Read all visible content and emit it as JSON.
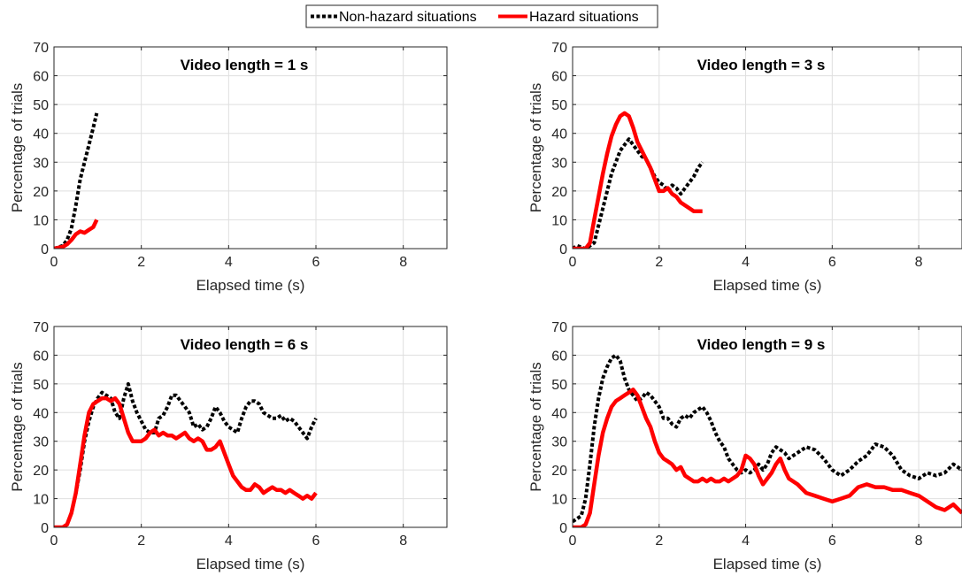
{
  "legend": {
    "placement": "top-center",
    "entries": [
      {
        "label": "Non-hazard situations",
        "color": "#000000",
        "style": "dotted"
      },
      {
        "label": "Hazard situations",
        "color": "#ff0000",
        "style": "solid"
      }
    ]
  },
  "chart_data": [
    {
      "type": "line",
      "title": "Video length = 1 s",
      "xlabel": "Elapsed time (s)",
      "ylabel": "Percentage of trials",
      "xlim": [
        0,
        9
      ],
      "ylim": [
        0,
        70
      ],
      "xticks": [
        0,
        2,
        4,
        6,
        8
      ],
      "yticks": [
        0,
        10,
        20,
        30,
        40,
        50,
        60,
        70
      ],
      "grid": true,
      "series": [
        {
          "name": "Non-hazard situations",
          "color": "#000000",
          "style": "dotted",
          "x": [
            0,
            0.1,
            0.2,
            0.3,
            0.4,
            0.5,
            0.6,
            0.7,
            0.8,
            0.9,
            0.98
          ],
          "y": [
            0,
            0.5,
            1,
            3,
            7,
            15,
            24,
            30,
            36,
            42,
            47
          ]
        },
        {
          "name": "Hazard situations",
          "color": "#ff0000",
          "style": "solid",
          "x": [
            0,
            0.1,
            0.2,
            0.3,
            0.4,
            0.5,
            0.6,
            0.7,
            0.8,
            0.9,
            0.98
          ],
          "y": [
            0,
            0.3,
            0.6,
            1.5,
            3,
            5,
            6,
            5.5,
            6.5,
            7.5,
            10
          ]
        }
      ]
    },
    {
      "type": "line",
      "title": "Video length = 3 s",
      "xlabel": "Elapsed time (s)",
      "ylabel": "Percentage of trials",
      "xlim": [
        0,
        9
      ],
      "ylim": [
        0,
        70
      ],
      "xticks": [
        0,
        2,
        4,
        6,
        8
      ],
      "yticks": [
        0,
        10,
        20,
        30,
        40,
        50,
        60,
        70
      ],
      "grid": true,
      "series": [
        {
          "name": "Non-hazard situations",
          "color": "#000000",
          "style": "dotted",
          "x": [
            0,
            0.1,
            0.3,
            0.5,
            0.6,
            0.7,
            0.8,
            0.9,
            1.0,
            1.1,
            1.2,
            1.3,
            1.4,
            1.5,
            1.6,
            1.7,
            1.8,
            1.9,
            2.0,
            2.1,
            2.2,
            2.3,
            2.4,
            2.5,
            2.6,
            2.7,
            2.8,
            2.9,
            3.0
          ],
          "y": [
            0,
            1,
            0,
            2,
            8,
            14,
            20,
            26,
            30,
            34,
            36,
            38,
            36,
            34,
            32,
            31,
            28,
            25,
            23,
            22,
            20,
            22,
            21,
            19,
            21,
            23,
            25,
            28,
            30
          ]
        },
        {
          "name": "Hazard situations",
          "color": "#ff0000",
          "style": "solid",
          "x": [
            0,
            0.1,
            0.3,
            0.4,
            0.5,
            0.6,
            0.7,
            0.8,
            0.9,
            1.0,
            1.1,
            1.2,
            1.3,
            1.4,
            1.5,
            1.6,
            1.7,
            1.8,
            1.9,
            2.0,
            2.1,
            2.2,
            2.3,
            2.4,
            2.5,
            2.6,
            2.7,
            2.8,
            2.9,
            3.0
          ],
          "y": [
            0,
            0,
            0,
            2,
            10,
            18,
            26,
            33,
            39,
            43,
            46,
            47,
            46,
            42,
            37,
            34,
            31,
            28,
            24,
            20,
            20,
            21,
            19,
            18,
            16,
            15,
            14,
            13,
            13,
            13
          ]
        }
      ]
    },
    {
      "type": "line",
      "title": "Video length = 6 s",
      "xlabel": "Elapsed time (s)",
      "ylabel": "Percentage of trials",
      "xlim": [
        0,
        9
      ],
      "ylim": [
        0,
        70
      ],
      "xticks": [
        0,
        2,
        4,
        6,
        8
      ],
      "yticks": [
        0,
        10,
        20,
        30,
        40,
        50,
        60,
        70
      ],
      "grid": true,
      "series": [
        {
          "name": "Non-hazard situations",
          "color": "#000000",
          "style": "dotted",
          "x": [
            0,
            0.2,
            0.3,
            0.4,
            0.5,
            0.6,
            0.7,
            0.8,
            0.9,
            1.0,
            1.1,
            1.2,
            1.3,
            1.4,
            1.5,
            1.6,
            1.7,
            1.8,
            1.9,
            2.0,
            2.1,
            2.2,
            2.3,
            2.4,
            2.5,
            2.6,
            2.7,
            2.8,
            2.9,
            3.0,
            3.1,
            3.2,
            3.3,
            3.4,
            3.5,
            3.6,
            3.7,
            3.8,
            3.9,
            4.0,
            4.1,
            4.2,
            4.3,
            4.4,
            4.5,
            4.6,
            4.7,
            4.8,
            4.9,
            5.0,
            5.1,
            5.2,
            5.3,
            5.4,
            5.5,
            5.6,
            5.7,
            5.8,
            5.9,
            6.0
          ],
          "y": [
            0,
            0,
            1,
            5,
            12,
            20,
            30,
            37,
            42,
            45,
            47,
            46,
            45,
            40,
            38,
            45,
            50,
            44,
            40,
            37,
            34,
            33,
            33,
            38,
            39,
            42,
            46,
            46,
            44,
            42,
            40,
            35,
            36,
            34,
            35,
            38,
            42,
            40,
            37,
            35,
            34,
            33,
            38,
            42,
            44,
            44,
            43,
            40,
            39,
            38,
            38,
            39,
            37,
            38,
            37,
            35,
            33,
            31,
            35,
            38
          ]
        },
        {
          "name": "Hazard situations",
          "color": "#ff0000",
          "style": "solid",
          "x": [
            0,
            0.2,
            0.3,
            0.4,
            0.5,
            0.6,
            0.7,
            0.8,
            0.9,
            1.0,
            1.1,
            1.2,
            1.3,
            1.4,
            1.5,
            1.6,
            1.7,
            1.8,
            1.9,
            2.0,
            2.1,
            2.2,
            2.3,
            2.4,
            2.5,
            2.6,
            2.7,
            2.8,
            2.9,
            3.0,
            3.1,
            3.2,
            3.3,
            3.4,
            3.5,
            3.6,
            3.7,
            3.8,
            3.9,
            4.0,
            4.1,
            4.2,
            4.3,
            4.4,
            4.5,
            4.6,
            4.7,
            4.8,
            4.9,
            5.0,
            5.1,
            5.2,
            5.3,
            5.4,
            5.5,
            5.6,
            5.7,
            5.8,
            5.9,
            6.0
          ],
          "y": [
            0,
            0,
            1,
            5,
            12,
            22,
            32,
            40,
            43,
            44,
            45,
            45,
            44,
            45,
            43,
            38,
            33,
            30,
            30,
            30,
            31,
            33,
            34,
            32,
            33,
            32,
            32,
            31,
            32,
            33,
            31,
            30,
            31,
            30,
            27,
            27,
            28,
            30,
            26,
            22,
            18,
            16,
            14,
            13,
            13,
            15,
            14,
            12,
            13,
            14,
            13,
            13,
            12,
            13,
            12,
            11,
            10,
            11,
            10,
            12
          ]
        }
      ]
    },
    {
      "type": "line",
      "title": "Video length = 9 s",
      "xlabel": "Elapsed time (s)",
      "ylabel": "Percentage of trials",
      "xlim": [
        0,
        9
      ],
      "ylim": [
        0,
        70
      ],
      "xticks": [
        0,
        2,
        4,
        6,
        8
      ],
      "yticks": [
        0,
        10,
        20,
        30,
        40,
        50,
        60,
        70
      ],
      "grid": true,
      "series": [
        {
          "name": "Non-hazard situations",
          "color": "#000000",
          "style": "dotted",
          "x": [
            0,
            0.1,
            0.2,
            0.3,
            0.4,
            0.5,
            0.6,
            0.7,
            0.8,
            0.9,
            1.0,
            1.1,
            1.2,
            1.3,
            1.4,
            1.5,
            1.6,
            1.7,
            1.8,
            1.9,
            2.0,
            2.1,
            2.2,
            2.3,
            2.4,
            2.5,
            2.6,
            2.7,
            2.8,
            2.9,
            3.0,
            3.1,
            3.2,
            3.3,
            3.4,
            3.5,
            3.6,
            3.7,
            3.8,
            3.9,
            4.0,
            4.1,
            4.2,
            4.3,
            4.4,
            4.5,
            4.6,
            4.7,
            4.8,
            4.9,
            5.0,
            5.2,
            5.4,
            5.6,
            5.8,
            6.0,
            6.2,
            6.4,
            6.6,
            6.8,
            7.0,
            7.2,
            7.4,
            7.6,
            7.8,
            8.0,
            8.2,
            8.4,
            8.6,
            8.8,
            9.0
          ],
          "y": [
            2,
            3,
            4,
            10,
            22,
            35,
            45,
            52,
            56,
            59,
            60,
            58,
            52,
            48,
            46,
            44,
            45,
            47,
            46,
            44,
            42,
            38,
            38,
            36,
            35,
            38,
            39,
            38,
            40,
            41,
            42,
            40,
            37,
            33,
            30,
            28,
            24,
            22,
            20,
            19,
            20,
            19,
            20,
            22,
            20,
            22,
            26,
            28,
            27,
            26,
            24,
            26,
            28,
            27,
            24,
            20,
            18,
            20,
            23,
            25,
            29,
            28,
            25,
            20,
            18,
            17,
            19,
            18,
            19,
            22,
            20
          ]
        },
        {
          "name": "Hazard situations",
          "color": "#ff0000",
          "style": "solid",
          "x": [
            0,
            0.1,
            0.2,
            0.3,
            0.4,
            0.5,
            0.6,
            0.7,
            0.8,
            0.9,
            1.0,
            1.1,
            1.2,
            1.3,
            1.4,
            1.5,
            1.6,
            1.7,
            1.8,
            1.9,
            2.0,
            2.1,
            2.2,
            2.3,
            2.4,
            2.5,
            2.6,
            2.7,
            2.8,
            2.9,
            3.0,
            3.1,
            3.2,
            3.3,
            3.4,
            3.5,
            3.6,
            3.7,
            3.8,
            3.9,
            4.0,
            4.1,
            4.2,
            4.3,
            4.4,
            4.5,
            4.6,
            4.7,
            4.8,
            4.9,
            5.0,
            5.2,
            5.4,
            5.6,
            5.8,
            6.0,
            6.2,
            6.4,
            6.6,
            6.8,
            7.0,
            7.2,
            7.4,
            7.6,
            7.8,
            8.0,
            8.2,
            8.4,
            8.6,
            8.8,
            9.0
          ],
          "y": [
            0,
            0,
            0,
            1,
            5,
            15,
            25,
            33,
            38,
            42,
            44,
            45,
            46,
            47,
            48,
            46,
            42,
            38,
            35,
            30,
            26,
            24,
            23,
            22,
            20,
            21,
            18,
            17,
            16,
            16,
            17,
            16,
            17,
            16,
            16,
            17,
            16,
            17,
            18,
            20,
            25,
            24,
            22,
            18,
            15,
            17,
            19,
            22,
            24,
            20,
            17,
            15,
            12,
            11,
            10,
            9,
            10,
            11,
            14,
            15,
            14,
            14,
            13,
            13,
            12,
            11,
            9,
            7,
            6,
            8,
            5
          ]
        }
      ]
    }
  ]
}
